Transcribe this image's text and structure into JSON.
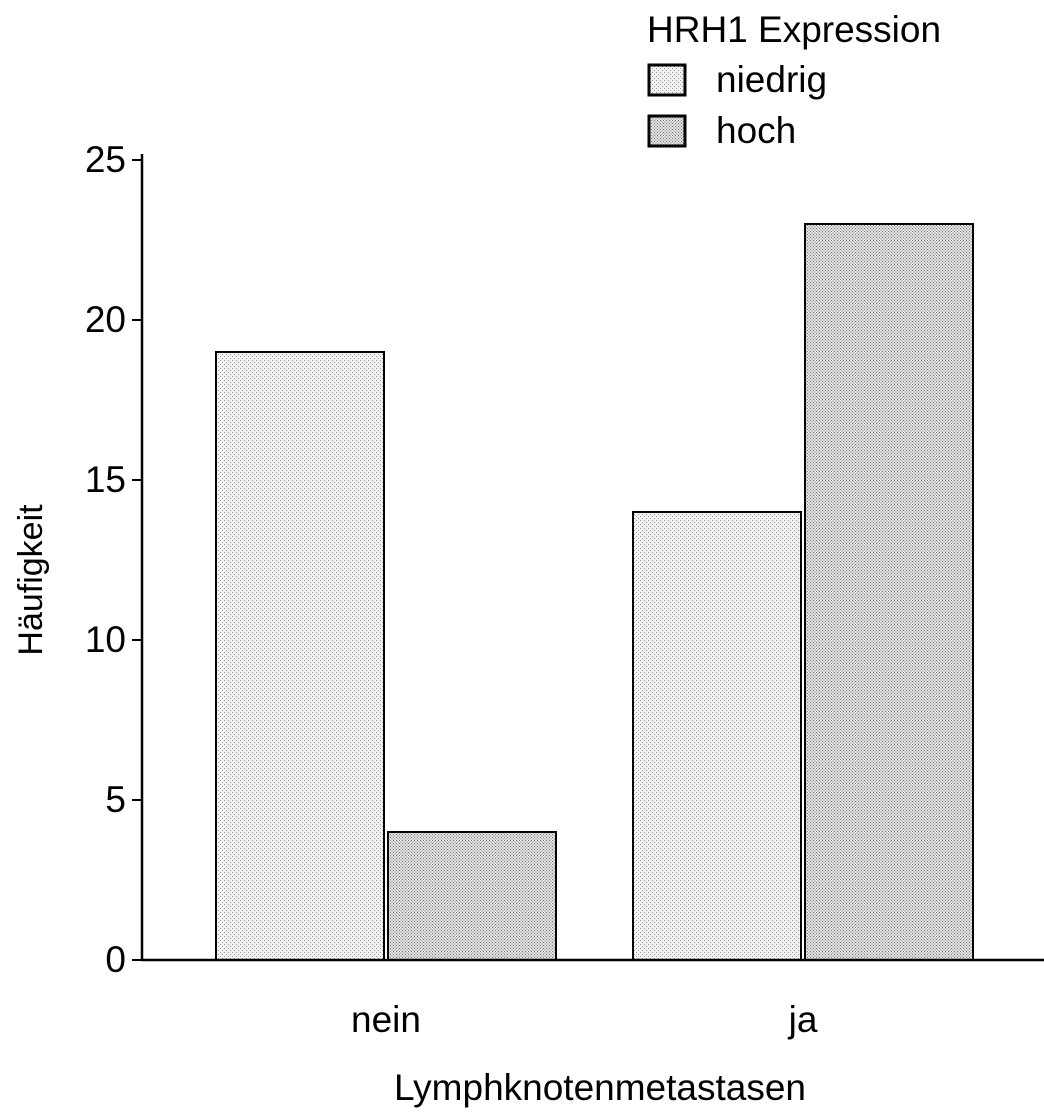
{
  "chart_data": {
    "type": "bar",
    "title": "",
    "xlabel": "Lymphknotenmetastasen",
    "ylabel": "Häufigkeit",
    "categories": [
      "nein",
      "ja"
    ],
    "series": [
      {
        "name": "niedrig",
        "values": [
          19,
          14
        ],
        "color": "#e6e6e6"
      },
      {
        "name": "hoch",
        "values": [
          4,
          23
        ],
        "color": "#d2d2d2"
      }
    ],
    "ylim": [
      0,
      25
    ],
    "yticks": [
      0,
      5,
      10,
      15,
      20,
      25
    ],
    "grid": false,
    "legend": {
      "title": "HRH1 Expression",
      "placement": "top-right"
    }
  }
}
